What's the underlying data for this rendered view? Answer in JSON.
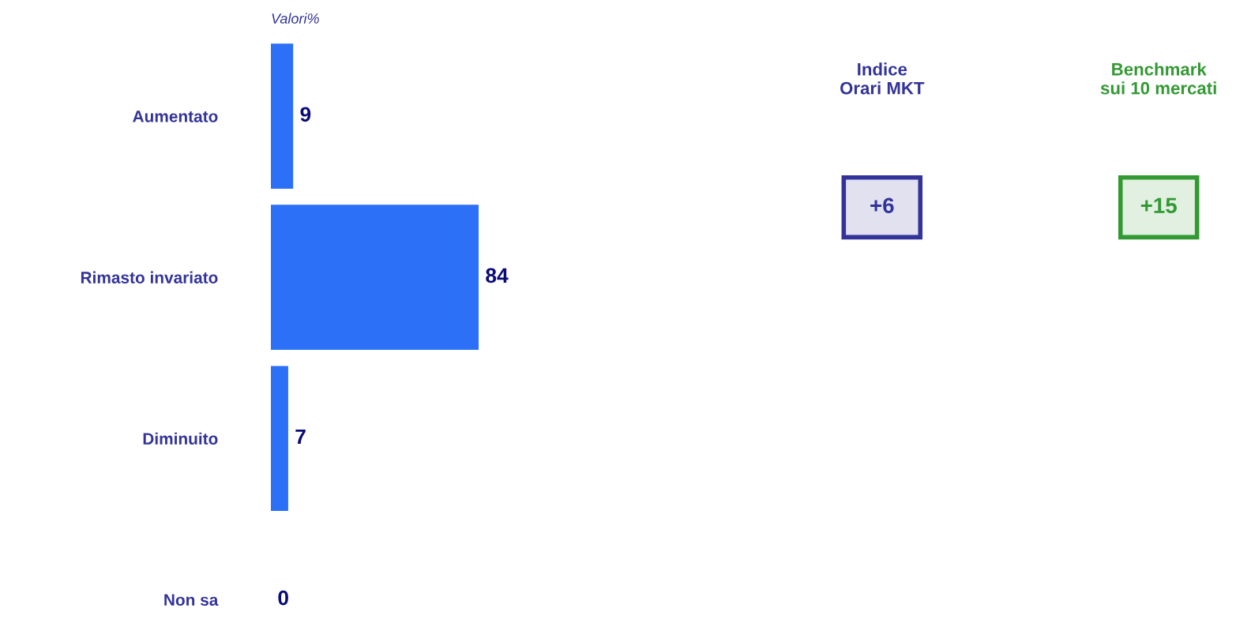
{
  "chart_data": [
    {
      "type": "bar",
      "orientation": "horizontal",
      "categories": [
        "Aumentato",
        "Rimasto invariato",
        "Diminuito",
        "Non sa"
      ],
      "values": [
        9,
        84,
        7,
        0
      ],
      "color": "#2b70f7",
      "data_labels": true,
      "tick_labels": "y",
      "annotations": [
        "Valori%"
      ]
    },
    {
      "type": "other",
      "categories": [
        "Indice\nOrari MKT",
        "Benchmark\nsui 10 mercati"
      ],
      "value_labels": [
        "+6",
        "+15"
      ],
      "colors": [
        "#333399",
        "#339933"
      ]
    }
  ]
}
